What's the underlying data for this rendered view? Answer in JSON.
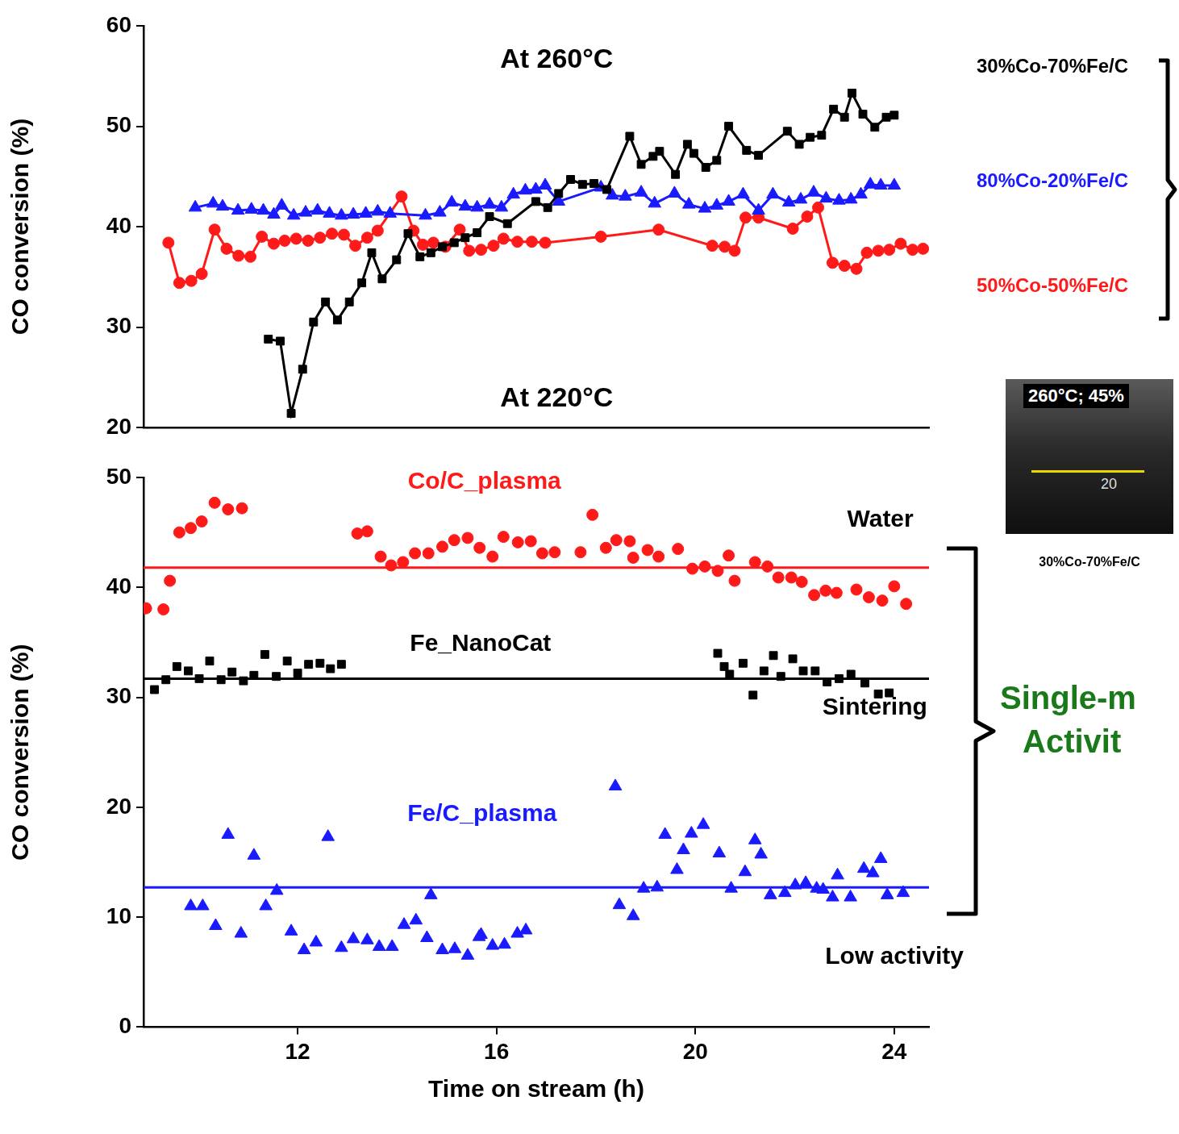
{
  "chart_data": [
    {
      "type": "line",
      "title": "At 260°C",
      "y_label": "CO conversion (%)",
      "xlim": [
        8.9,
        24.7
      ],
      "ylim": [
        20,
        60
      ],
      "yticks": [
        20,
        30,
        40,
        50,
        60
      ],
      "tick_labels": "y",
      "grid": false,
      "legend": "right",
      "series": [
        {
          "name": "30%Co-70%Fe/C",
          "color": "#000000",
          "marker": "square",
          "line_style": "solid",
          "x": [
            11.41,
            11.65,
            11.87,
            12.1,
            12.32,
            12.56,
            12.8,
            13.04,
            13.29,
            13.49,
            13.7,
            13.99,
            14.22,
            14.46,
            14.68,
            14.91,
            15.15,
            15.37,
            15.61,
            15.86,
            16.22,
            16.79,
            17.03,
            17.25,
            17.49,
            17.73,
            17.96,
            18.22,
            18.68,
            18.91,
            19.15,
            19.28,
            19.6,
            19.84,
            19.97,
            20.21,
            20.43,
            20.67,
            21.03,
            21.27,
            21.85,
            22.09,
            22.31,
            22.54,
            22.78,
            23.0,
            23.15,
            23.37,
            23.61,
            23.84,
            24.0
          ],
          "values": [
            28.8,
            28.6,
            21.4,
            25.8,
            30.5,
            32.5,
            30.7,
            32.5,
            34.4,
            37.4,
            34.8,
            36.7,
            39.3,
            37.0,
            37.4,
            38.0,
            38.4,
            38.9,
            39.4,
            41.0,
            40.3,
            42.5,
            41.9,
            43.3,
            44.7,
            44.2,
            44.3,
            43.7,
            49.0,
            46.2,
            47.0,
            47.5,
            45.2,
            48.2,
            47.3,
            45.9,
            46.6,
            50.0,
            47.6,
            47.1,
            49.5,
            48.2,
            48.9,
            49.1,
            51.7,
            50.9,
            53.3,
            51.2,
            49.9,
            50.9,
            51.1
          ]
        },
        {
          "name": "80%Co-20%Fe/C",
          "color": "#1a1aff",
          "marker": "triangle",
          "line_style": "solid",
          "x": [
            9.94,
            10.3,
            10.49,
            10.8,
            11.07,
            11.31,
            11.52,
            11.68,
            11.92,
            12.16,
            12.4,
            12.64,
            12.88,
            13.12,
            13.37,
            13.61,
            13.86,
            14.57,
            14.86,
            15.1,
            15.37,
            15.61,
            15.86,
            16.1,
            16.34,
            16.58,
            16.79,
            16.98,
            17.25,
            18.1,
            18.33,
            18.59,
            18.91,
            19.18,
            19.58,
            19.87,
            20.19,
            20.43,
            20.67,
            20.96,
            21.27,
            21.56,
            21.88,
            22.12,
            22.38,
            22.63,
            22.89,
            23.13,
            23.33,
            23.52,
            23.73,
            24.0
          ],
          "values": [
            41.9,
            42.3,
            42.0,
            41.6,
            41.7,
            41.6,
            41.2,
            42.1,
            41.1,
            41.4,
            41.6,
            41.3,
            41.1,
            41.2,
            41.3,
            41.5,
            41.3,
            41.1,
            41.4,
            42.4,
            42.0,
            41.9,
            42.2,
            41.9,
            43.2,
            43.6,
            43.7,
            44.1,
            42.5,
            43.9,
            43.1,
            43.0,
            43.4,
            42.3,
            43.3,
            42.2,
            41.8,
            42.1,
            42.5,
            43.2,
            41.6,
            43.2,
            42.4,
            42.7,
            43.4,
            42.8,
            42.6,
            42.7,
            43.2,
            44.2,
            44.1,
            44.1
          ]
        },
        {
          "name": "50%Co-50%Fe/C",
          "color": "#ff1a1a",
          "marker": "circle",
          "line_style": "solid",
          "x": [
            9.4,
            9.62,
            9.86,
            10.07,
            10.33,
            10.57,
            10.81,
            11.05,
            11.28,
            11.52,
            11.74,
            11.97,
            12.21,
            12.45,
            12.69,
            12.93,
            13.16,
            13.4,
            13.61,
            14.09,
            14.33,
            14.52,
            14.73,
            14.97,
            15.26,
            15.45,
            15.69,
            15.94,
            16.14,
            16.42,
            16.71,
            16.98,
            18.1,
            19.26,
            20.34,
            20.59,
            20.79,
            21.01,
            21.27,
            21.96,
            22.25,
            22.47,
            22.76,
            23.0,
            23.24,
            23.45,
            23.68,
            23.9,
            24.13,
            24.37,
            24.58
          ],
          "values": [
            38.4,
            34.4,
            34.6,
            35.3,
            39.7,
            37.8,
            37.1,
            37.0,
            39.0,
            38.3,
            38.6,
            38.8,
            38.6,
            38.9,
            39.3,
            39.2,
            38.1,
            38.9,
            39.6,
            43.0,
            39.6,
            38.2,
            38.4,
            38.0,
            39.7,
            37.6,
            37.7,
            38.1,
            38.8,
            38.5,
            38.5,
            38.4,
            39.0,
            39.7,
            38.1,
            38.0,
            37.6,
            40.9,
            40.9,
            39.8,
            41.0,
            41.9,
            36.4,
            36.1,
            35.8,
            37.4,
            37.6,
            37.7,
            38.3,
            37.7,
            37.8
          ]
        }
      ]
    },
    {
      "type": "scatter",
      "title": "At 220°C",
      "y_label": "CO conversion (%)",
      "x_label": "Time on stream (h)",
      "xlim": [
        8.9,
        24.7
      ],
      "xticks": [
        12,
        16,
        20,
        24
      ],
      "ylim": [
        0,
        50
      ],
      "yticks": [
        0,
        10,
        20,
        30,
        40,
        50
      ],
      "grid": false,
      "legend": "inside",
      "annotations": [
        "Water",
        "Sintering",
        "Low activity"
      ],
      "side_note": [
        "Single-m",
        "Activit"
      ],
      "series": [
        {
          "name": "Co/C_plasma",
          "color": "#ff1a1a",
          "marker": "circle",
          "line_style": "none",
          "average": 41.8,
          "x": [
            8.95,
            9.3,
            9.43,
            9.62,
            9.85,
            10.07,
            10.33,
            10.6,
            10.88,
            13.2,
            13.4,
            13.67,
            13.88,
            14.12,
            14.36,
            14.63,
            14.91,
            15.15,
            15.42,
            15.66,
            15.92,
            16.14,
            16.43,
            16.69,
            16.92,
            17.17,
            17.69,
            17.93,
            18.2,
            18.41,
            18.68,
            18.75,
            19.04,
            19.26,
            19.65,
            19.94,
            20.19,
            20.45,
            20.67,
            20.79,
            21.2,
            21.45,
            21.67,
            21.93,
            22.14,
            22.39,
            22.62,
            22.84,
            23.24,
            23.49,
            23.76,
            24.0,
            24.24
          ],
          "values": [
            38.1,
            38.0,
            40.6,
            45.0,
            45.4,
            46.0,
            47.7,
            47.1,
            47.2,
            44.9,
            45.1,
            42.8,
            42.0,
            42.3,
            43.1,
            43.1,
            43.7,
            44.3,
            44.5,
            43.6,
            42.8,
            44.6,
            44.1,
            44.2,
            43.1,
            43.2,
            43.2,
            46.6,
            43.6,
            44.3,
            44.2,
            42.7,
            43.4,
            42.8,
            43.5,
            41.7,
            41.9,
            41.5,
            42.9,
            40.6,
            42.3,
            41.9,
            40.9,
            40.9,
            40.5,
            39.3,
            39.7,
            39.5,
            39.8,
            39.1,
            38.8,
            40.1,
            38.5
          ]
        },
        {
          "name": "Fe_NanoCat",
          "color": "#000000",
          "marker": "square",
          "line_style": "none",
          "average": 31.7,
          "x": [
            9.12,
            9.35,
            9.57,
            9.8,
            10.02,
            10.23,
            10.46,
            10.68,
            10.91,
            11.12,
            11.34,
            11.57,
            11.79,
            12.0,
            12.22,
            12.45,
            12.66,
            12.88,
            20.45,
            20.58,
            20.69,
            20.96,
            21.16,
            21.38,
            21.57,
            21.72,
            21.96,
            22.17,
            22.41,
            22.65,
            22.89,
            23.13,
            23.41,
            23.68,
            23.9
          ],
          "values": [
            30.7,
            31.6,
            32.8,
            32.4,
            31.7,
            33.3,
            31.6,
            32.3,
            31.5,
            32.0,
            33.9,
            31.9,
            33.3,
            32.2,
            33.0,
            33.1,
            32.6,
            33.0,
            34.0,
            32.8,
            32.1,
            33.1,
            30.2,
            32.4,
            33.8,
            31.9,
            33.5,
            32.4,
            32.4,
            31.4,
            31.7,
            32.1,
            31.3,
            30.3,
            30.4
          ]
        },
        {
          "name": "Fe/C_plasma",
          "color": "#1a1aff",
          "marker": "triangle",
          "line_style": "none",
          "average": 12.7,
          "x": [
            9.85,
            10.09,
            10.35,
            10.6,
            10.86,
            11.12,
            11.36,
            11.58,
            11.87,
            12.13,
            12.37,
            12.61,
            12.88,
            13.12,
            13.4,
            13.64,
            13.9,
            14.14,
            14.38,
            14.6,
            14.68,
            14.91,
            15.16,
            15.42,
            15.65,
            15.69,
            15.92,
            16.16,
            16.42,
            16.59,
            18.39,
            18.47,
            18.75,
            18.96,
            19.23,
            19.39,
            19.63,
            19.76,
            19.92,
            20.16,
            20.48,
            20.72,
            21.0,
            21.2,
            21.32,
            21.51,
            21.8,
            22.01,
            22.22,
            22.44,
            22.57,
            22.76,
            22.86,
            23.12,
            23.39,
            23.57,
            23.73,
            23.86,
            24.18
          ],
          "values": [
            11.0,
            11.0,
            9.2,
            17.5,
            8.5,
            15.6,
            11.0,
            12.4,
            8.7,
            7.0,
            7.7,
            17.3,
            7.2,
            8.0,
            7.9,
            7.3,
            7.3,
            9.3,
            9.7,
            8.1,
            12.0,
            7.0,
            7.1,
            6.5,
            8.2,
            8.4,
            7.4,
            7.5,
            8.5,
            8.8,
            21.9,
            11.1,
            10.1,
            12.6,
            12.7,
            17.5,
            14.3,
            16.1,
            17.6,
            18.4,
            15.8,
            12.6,
            14.1,
            17.0,
            15.7,
            12.0,
            12.2,
            12.9,
            13.1,
            12.6,
            12.5,
            11.8,
            13.8,
            11.8,
            14.4,
            14.0,
            15.3,
            12.0,
            12.2
          ]
        }
      ]
    }
  ],
  "inset": {
    "label": "260°C; 45%",
    "mark": "20",
    "caption": "30%Co-70%Fe/C"
  }
}
